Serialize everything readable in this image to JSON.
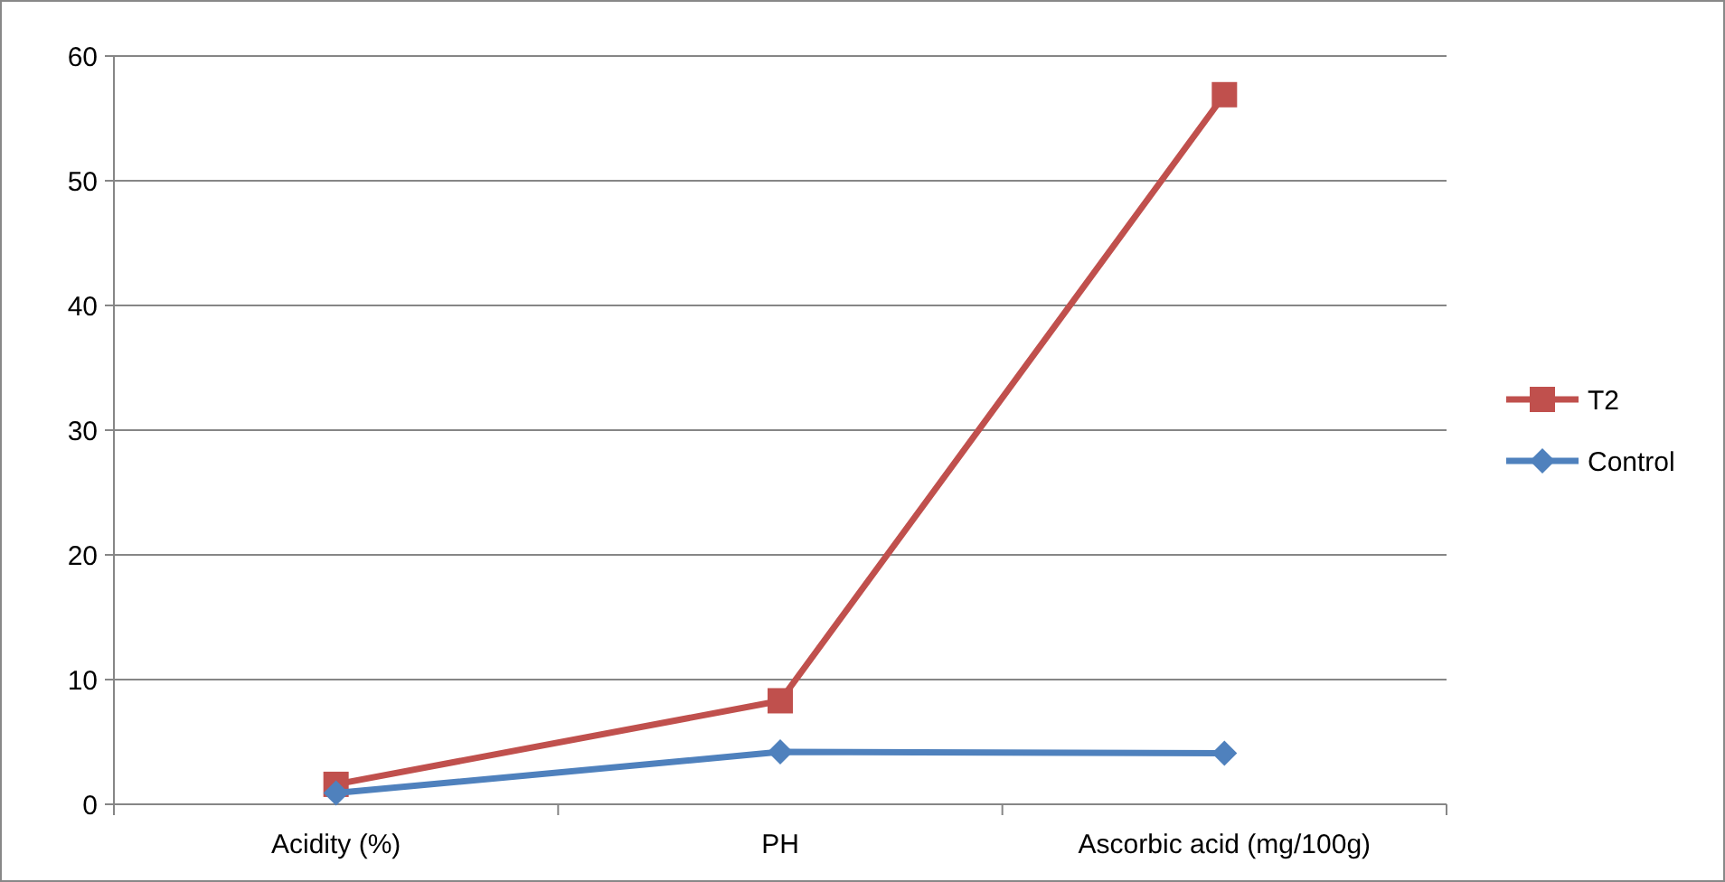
{
  "chart_data": {
    "type": "line",
    "categories": [
      "Acidity (%)",
      "PH",
      "Ascorbic acid (mg/100g)"
    ],
    "series": [
      {
        "name": "T2",
        "color": "#c0504d",
        "values": [
          1.6,
          8.3,
          56.9
        ],
        "marker": "square"
      },
      {
        "name": "Control",
        "color": "#4f81bd",
        "values": [
          0.9,
          4.2,
          4.1
        ],
        "marker": "diamond"
      }
    ],
    "ylim": [
      0,
      60
    ],
    "yticks": [
      0,
      10,
      20,
      30,
      40,
      50,
      60
    ],
    "grid": "y",
    "legend": "right",
    "line_style": "solid"
  }
}
